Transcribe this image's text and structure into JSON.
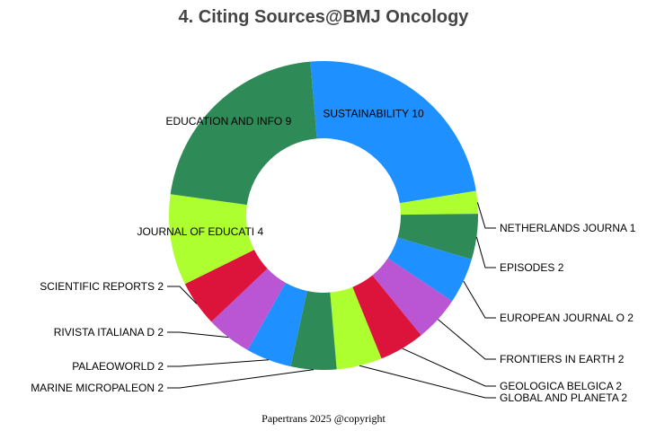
{
  "chart_data": {
    "type": "pie",
    "variant": "donut",
    "title": "4. Citing Sources@BMJ Oncology",
    "footer": "Papertrans 2025 @copyright",
    "slices": [
      {
        "label": "SUSTAINABILITY",
        "value": 10,
        "color": "#1e90ff"
      },
      {
        "label": "NETHERLANDS JOURNA",
        "value": 1,
        "color": "#adff2f"
      },
      {
        "label": "EPISODES",
        "value": 2,
        "color": "#2e8b57"
      },
      {
        "label": "EUROPEAN JOURNAL O",
        "value": 2,
        "color": "#1e90ff"
      },
      {
        "label": "FRONTIERS IN EARTH",
        "value": 2,
        "color": "#ba55d3"
      },
      {
        "label": "GEOLOGICA BELGICA",
        "value": 2,
        "color": "#dc143c"
      },
      {
        "label": "GLOBAL AND PLANETA",
        "value": 2,
        "color": "#adff2f"
      },
      {
        "label": "MARINE MICROPALEON",
        "value": 2,
        "color": "#2e8b57"
      },
      {
        "label": "PALAEOWORLD",
        "value": 2,
        "color": "#1e90ff"
      },
      {
        "label": "RIVISTA ITALIANA D",
        "value": 2,
        "color": "#ba55d3"
      },
      {
        "label": "SCIENTIFIC REPORTS",
        "value": 2,
        "color": "#dc143c"
      },
      {
        "label": "JOURNAL OF EDUCATI",
        "value": 4,
        "color": "#adff2f"
      },
      {
        "label": "EDUCATION AND INFO",
        "value": 9,
        "color": "#2e8b57"
      }
    ]
  }
}
